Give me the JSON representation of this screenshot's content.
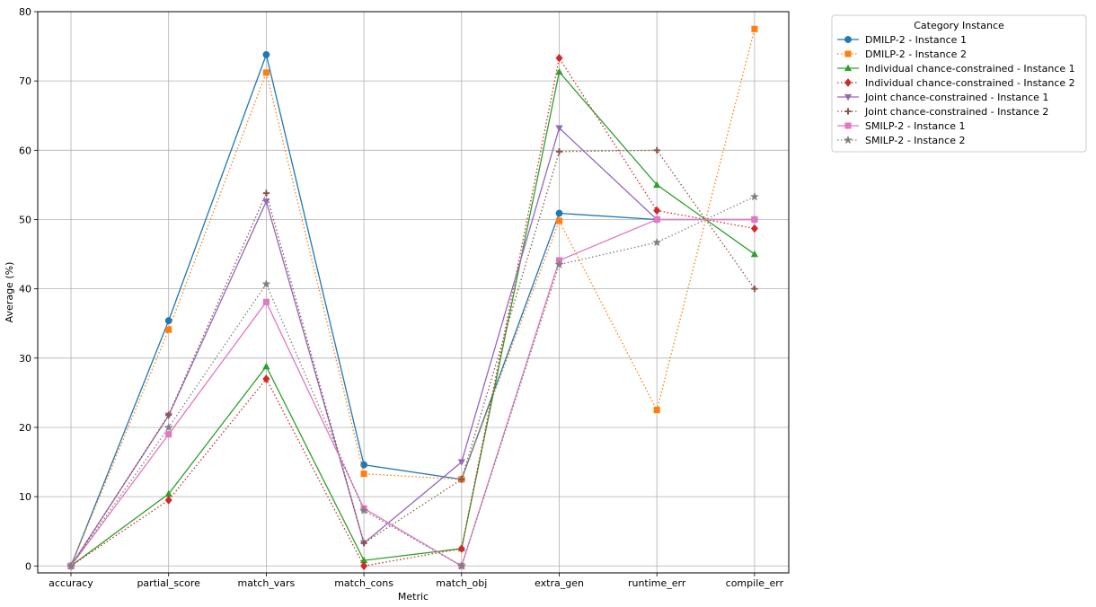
{
  "chart_data": {
    "type": "line",
    "xlabel": "Metric",
    "ylabel": "Average (%)",
    "ylim": [
      -1,
      80
    ],
    "yticks": [
      0,
      10,
      20,
      30,
      40,
      50,
      60,
      70,
      80
    ],
    "grid": true,
    "legend_title": "Category Instance",
    "legend_placement": "outside-top-right",
    "categories": [
      "accuracy",
      "partial_score",
      "match_vars",
      "match_cons",
      "match_obj",
      "extra_gen",
      "runtime_err",
      "compile_err"
    ],
    "series": [
      {
        "name": "DMILP-2 - Instance 1",
        "color": "#1f77b4",
        "marker": "circle",
        "dash": "solid",
        "values": [
          0,
          35.4,
          73.8,
          14.6,
          12.5,
          50.9,
          50.0,
          50.0
        ]
      },
      {
        "name": "DMILP-2 - Instance 2",
        "color": "#ff7f0e",
        "marker": "square",
        "dash": "dotted",
        "values": [
          0,
          34.1,
          71.2,
          13.3,
          12.5,
          49.8,
          22.5,
          77.5
        ]
      },
      {
        "name": "Individual chance-constrained - Instance 1",
        "color": "#2ca02c",
        "marker": "triangle-up",
        "dash": "solid",
        "values": [
          0,
          10.4,
          28.8,
          0.8,
          2.5,
          71.3,
          55.0,
          45.0
        ]
      },
      {
        "name": "Individual chance-constrained - Instance 2",
        "color": "#d62728",
        "marker": "diamond",
        "dash": "dotted",
        "values": [
          0,
          9.5,
          27.0,
          0.0,
          2.5,
          73.3,
          51.3,
          48.7
        ]
      },
      {
        "name": "Joint chance-constrained - Instance 1",
        "color": "#9467bd",
        "marker": "triangle-down",
        "dash": "solid",
        "values": [
          0,
          21.7,
          52.6,
          3.3,
          15.0,
          63.2,
          50.0,
          50.0
        ]
      },
      {
        "name": "Joint chance-constrained - Instance 2",
        "color": "#8c564b",
        "marker": "plus",
        "dash": "dotted",
        "values": [
          0,
          21.8,
          53.8,
          3.3,
          12.5,
          59.8,
          60.0,
          40.0
        ]
      },
      {
        "name": "SMILP-2 - Instance 1",
        "color": "#e377c2",
        "marker": "square",
        "dash": "solid",
        "values": [
          0,
          19.0,
          38.1,
          8.3,
          0.0,
          44.1,
          50.0,
          50.0
        ]
      },
      {
        "name": "SMILP-2 - Instance 2",
        "color": "#7f7f7f",
        "marker": "star",
        "dash": "dotted",
        "values": [
          0,
          20.0,
          40.7,
          8.0,
          0.0,
          43.5,
          46.7,
          53.3
        ]
      }
    ]
  }
}
